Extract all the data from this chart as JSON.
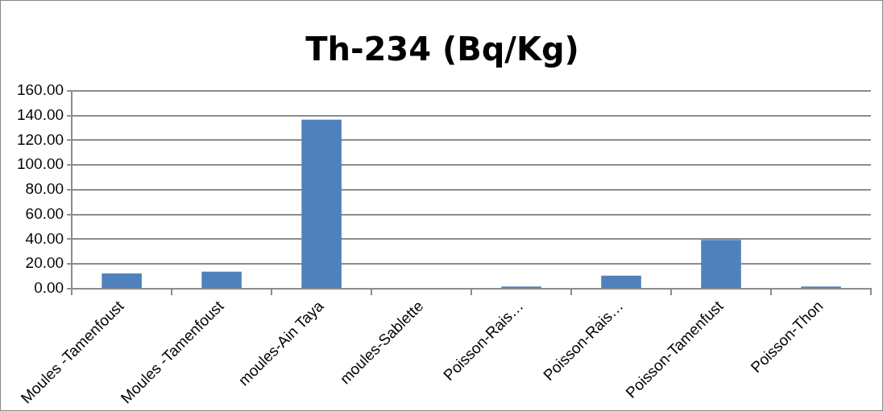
{
  "chart_data": {
    "type": "bar",
    "title": "Th-234 (Bq/Kg)",
    "categories": [
      "Moules -Tamenfoust",
      "Moules -Tamenfoust",
      "moules-Ain Taya",
      "moules-Sablette",
      "Poisson-Rais…",
      "Poisson-Rais…",
      "Poisson-Tamenfust",
      "Poisson-Thon"
    ],
    "values": [
      12.3,
      13.8,
      136.8,
      0,
      1.8,
      10.5,
      39.4,
      1.8
    ],
    "color": "#4f81bd",
    "ylim": [
      0,
      160
    ],
    "yticks": [
      {
        "value": 0,
        "label": "0.00"
      },
      {
        "value": 20,
        "label": "20.00"
      },
      {
        "value": 40,
        "label": "40.00"
      },
      {
        "value": 60,
        "label": "60.00"
      },
      {
        "value": 80,
        "label": "80.00"
      },
      {
        "value": 100,
        "label": "100.00"
      },
      {
        "value": 120,
        "label": "120.00"
      },
      {
        "value": 140,
        "label": "140.00"
      },
      {
        "value": 160,
        "label": "160.00"
      }
    ],
    "grid": "y"
  }
}
